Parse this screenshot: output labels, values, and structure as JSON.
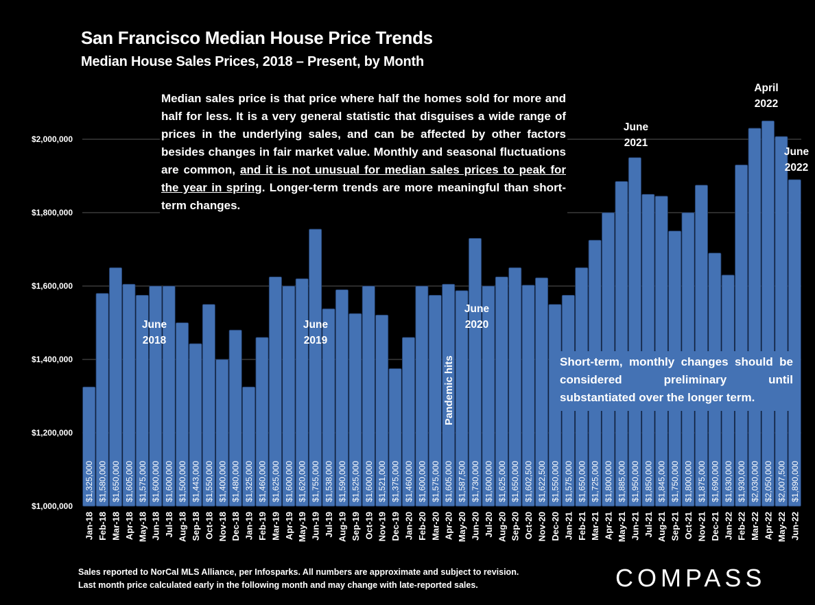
{
  "header": {
    "title": "San Francisco Median House Price Trends",
    "subtitle": "Median House Sales Prices, 2018 – Present, by Month"
  },
  "annotations": {
    "note_part1": "Median sales price is that price where half the homes sold for more and half for less. It is a very general statistic that disguises a wide range of prices in the underlying sales, and can be affected by other factors besides changes in fair market value. Monthly and seasonal fluctuations are common, ",
    "note_underlined": "and it is not unusual for median sales prices to peak for the year in spring",
    "note_part2": ". Longer-term trends are more meaningful than short-term changes.",
    "june2018_line1": "June",
    "june2018_line2": "2018",
    "june2019_line1": "June",
    "june2019_line2": "2019",
    "june2020_line1": "June",
    "june2020_line2": "2020",
    "june2021_line1": "June",
    "june2021_line2": "2021",
    "april2022_line1": "April",
    "april2022_line2": "2022",
    "june2022_line1": "June",
    "june2022_line2": "2022",
    "pandemic": "Pandemic hits",
    "short_term": "Short-term, monthly changes should be considered preliminary until substantiated over the longer term."
  },
  "footer": {
    "line1": "Sales reported to NorCal MLS Alliance, per Infosparks. All numbers are approximate and subject to revision.",
    "line2": "Last month price calculated early in the following month and may change with late-reported sales.",
    "logo": "COMPASS"
  },
  "colors": {
    "bar": "#4472b4",
    "background": "#000000",
    "text": "#ffffff",
    "grid": "#595959"
  },
  "chart_data": {
    "type": "bar",
    "title": "San Francisco Median House Price Trends",
    "subtitle": "Median House Sales Prices, 2018 – Present, by Month",
    "xlabel": "",
    "ylabel": "",
    "ylim": [
      1000000,
      2100000
    ],
    "yticks": [
      1000000,
      1200000,
      1400000,
      1600000,
      1800000,
      2000000
    ],
    "ytick_labels": [
      "$1,000,000",
      "$1,200,000",
      "$1,400,000",
      "$1,600,000",
      "$1,800,000",
      "$2,000,000"
    ],
    "grid": true,
    "legend": "none",
    "categories": [
      "Jan-18",
      "Feb-18",
      "Mar-18",
      "Apr-18",
      "May-18",
      "Jun-18",
      "Jul-18",
      "Aug-18",
      "Sep-18",
      "Oct-18",
      "Nov-18",
      "Dec-18",
      "Jan-19",
      "Feb-19",
      "Mar-19",
      "Apr-19",
      "May-19",
      "Jun-19",
      "Jul-19",
      "Aug-19",
      "Sep-19",
      "Oct-19",
      "Nov-19",
      "Dec-19",
      "Jan-20",
      "Feb-20",
      "Mar-20",
      "Apr-20",
      "May-20",
      "Jun-20",
      "Jul-20",
      "Aug-20",
      "Sep-20",
      "Oct-20",
      "Nov-20",
      "Dec-20",
      "Jan-21",
      "Feb-21",
      "Mar-21",
      "Apr-21",
      "May-21",
      "Jun-21",
      "Jul-21",
      "Aug-21",
      "Sep-21",
      "Oct-21",
      "Nov-21",
      "Dec-21",
      "Jan-22",
      "Feb-22",
      "Mar-22",
      "Apr-22",
      "May-22",
      "Jun-22"
    ],
    "values": [
      1325000,
      1580000,
      1650000,
      1605000,
      1575000,
      1600000,
      1600000,
      1500000,
      1443000,
      1550000,
      1400000,
      1480000,
      1325000,
      1460000,
      1625000,
      1600000,
      1620000,
      1755000,
      1538000,
      1590000,
      1525000,
      1600000,
      1521000,
      1375000,
      1460000,
      1600000,
      1575000,
      1605000,
      1587500,
      1730000,
      1600000,
      1625000,
      1650000,
      1602500,
      1622500,
      1550000,
      1575000,
      1650000,
      1725000,
      1800000,
      1885000,
      1950000,
      1850000,
      1845000,
      1750000,
      1800000,
      1875000,
      1690000,
      1630000,
      1930000,
      2030000,
      2050000,
      2007500,
      1890000
    ],
    "data_labels": [
      "$1,325,000",
      "$1,580,000",
      "$1,650,000",
      "$1,605,000",
      "$1,575,000",
      "$1,600,000",
      "$1,600,000",
      "$1,500,000",
      "$1,443,000",
      "$1,550,000",
      "$1,400,000",
      "$1,480,000",
      "$1,325,000",
      "$1,460,000",
      "$1,625,000",
      "$1,600,000",
      "$1,620,000",
      "$1,755,000",
      "$1,538,000",
      "$1,590,000",
      "$1,525,000",
      "$1,600,000",
      "$1,521,000",
      "$1,375,000",
      "$1,460,000",
      "$1,600,000",
      "$1,575,000",
      "$1,605,000",
      "$1,587,500",
      "$1,730,000",
      "$1,600,000",
      "$1,625,000",
      "$1,650,000",
      "$1,602,500",
      "$1,622,500",
      "$1,550,000",
      "$1,575,000",
      "$1,650,000",
      "$1,725,000",
      "$1,800,000",
      "$1,885,000",
      "$1,950,000",
      "$1,850,000",
      "$1,845,000",
      "$1,750,000",
      "$1,800,000",
      "$1,875,000",
      "$1,690,000",
      "$1,630,000",
      "$1,930,000",
      "$2,030,000",
      "$2,050,000",
      "$2,007,500",
      "$1,890,000"
    ]
  }
}
